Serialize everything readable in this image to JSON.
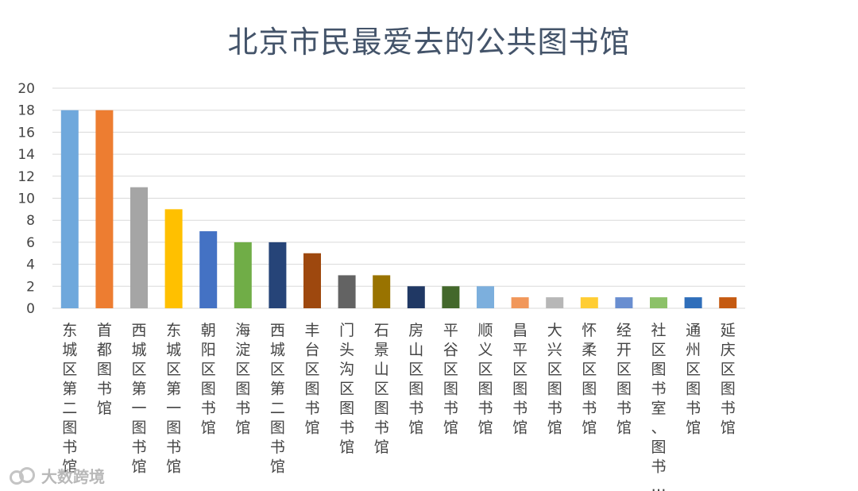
{
  "chart_data": {
    "type": "bar",
    "title": "北京市民最爱去的公共图书馆",
    "categories": [
      "东城区第二图书馆",
      "首都图书馆",
      "西城区第一图书馆",
      "东城区第一图书馆",
      "朝阳区图书馆",
      "海淀区图书馆",
      "西城区第二图书馆",
      "丰台区图书馆",
      "门头沟区图书馆",
      "石景山区图书馆",
      "房山区图书馆",
      "平谷区图书馆",
      "顺义区图书馆",
      "昌平区图书馆",
      "大兴区图书馆",
      "怀柔区图书馆",
      "经开区图书馆",
      "社区图书室、图书…",
      "通州区图书馆",
      "延庆区图书馆"
    ],
    "values": [
      18,
      18,
      11,
      9,
      7,
      6,
      6,
      5,
      3,
      3,
      2,
      2,
      2,
      1,
      1,
      1,
      1,
      1,
      1,
      1
    ],
    "colors": [
      "#6fa8dc",
      "#ed7d31",
      "#a5a5a5",
      "#ffc000",
      "#4472c4",
      "#70ad47",
      "#264478",
      "#9e480e",
      "#636363",
      "#997300",
      "#203864",
      "#43682b",
      "#7cafdd",
      "#f1975a",
      "#b7b7b7",
      "#ffcd33",
      "#698ed0",
      "#8cc168",
      "#2f6eba",
      "#c55a11"
    ],
    "ylim": [
      0,
      20
    ],
    "yticks": [
      0,
      2,
      4,
      6,
      8,
      10,
      12,
      14,
      16,
      18,
      20
    ],
    "xlabel": "",
    "ylabel": "",
    "grid": true,
    "legend": "none"
  },
  "watermark": {
    "text": "大数跨境",
    "icon": "cloud-logo-icon"
  }
}
